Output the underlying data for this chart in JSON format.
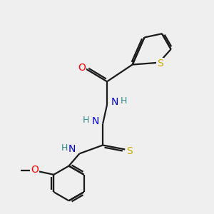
{
  "background_color": "#efefef",
  "bond_color": "#1a1a1a",
  "atom_colors": {
    "O": "#ff0000",
    "N": "#0000cd",
    "S_thiophene": "#ccaa00",
    "S_thio": "#ccaa00",
    "H": "#2e8b8b",
    "C": "#1a1a1a"
  },
  "figsize": [
    3.0,
    3.0
  ],
  "dpi": 100
}
